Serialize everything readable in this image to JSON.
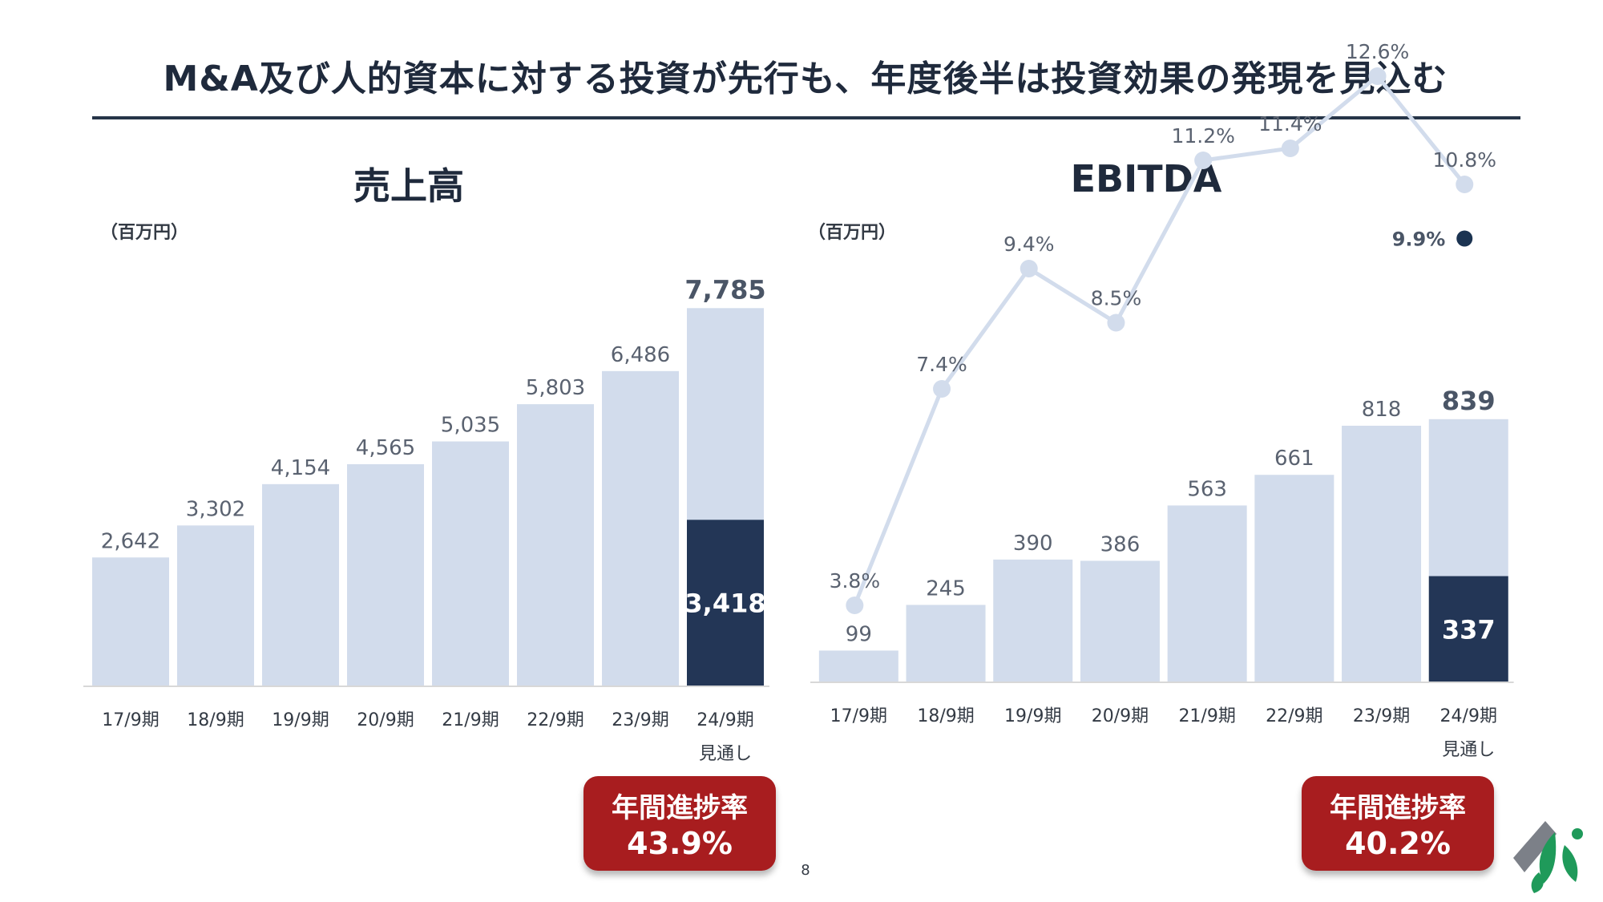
{
  "slide": {
    "title": "M&A及び人的資本に対する投資が先行も、年度後半は投資効果の発現を見込む",
    "page_number": "8"
  },
  "chart_data": [
    {
      "type": "bar",
      "title": "売上高",
      "unit": "（百万円）",
      "categories": [
        "17/9期",
        "18/9期",
        "19/9期",
        "20/9期",
        "21/9期",
        "22/9期",
        "23/9期",
        "24/9期"
      ],
      "category_sublabels": [
        "",
        "",
        "",
        "",
        "",
        "",
        "",
        "見通し"
      ],
      "series": [
        {
          "values": [
            2642,
            3302,
            4154,
            4565,
            5035,
            5803,
            6486,
            7785
          ],
          "color": "#d2dcec"
        },
        {
          "values": [
            null,
            null,
            null,
            null,
            null,
            null,
            null,
            3418
          ],
          "color": "#233656"
        }
      ],
      "value_labels": [
        "2,642",
        "3,302",
        "4,154",
        "4,565",
        "5,035",
        "5,803",
        "6,486",
        "7,785"
      ],
      "highlight_label": "3,418",
      "ylim": [
        0,
        8600
      ],
      "badge": {
        "label": "年間進捗率",
        "value": "43.9%"
      }
    },
    {
      "type": "bar",
      "title": "EBITDA",
      "unit": "（百万円）",
      "categories": [
        "17/9期",
        "18/9期",
        "19/9期",
        "20/9期",
        "21/9期",
        "22/9期",
        "23/9期",
        "24/9期"
      ],
      "category_sublabels": [
        "",
        "",
        "",
        "",
        "",
        "",
        "",
        "見通し"
      ],
      "series": [
        {
          "values": [
            99,
            245,
            390,
            386,
            563,
            661,
            818,
            839
          ],
          "color": "#d2dcec"
        },
        {
          "values": [
            null,
            null,
            null,
            null,
            null,
            null,
            null,
            337
          ],
          "color": "#233656"
        }
      ],
      "value_labels": [
        "99",
        "245",
        "390",
        "386",
        "563",
        "661",
        "818",
        "839"
      ],
      "highlight_label": "337",
      "ylim": [
        0,
        1000
      ],
      "margin_line": {
        "values": [
          3.8,
          7.4,
          9.4,
          8.5,
          11.2,
          11.4,
          12.6,
          10.8
        ],
        "labels": [
          "3.8%",
          "7.4%",
          "9.4%",
          "8.5%",
          "11.2%",
          "11.4%",
          "12.6%",
          "10.8%"
        ],
        "color": "#d2dcec",
        "ylim": [
          0,
          14
        ]
      },
      "margin_highlight": {
        "value": 9.9,
        "label": "9.9%",
        "color": "#1b3351"
      },
      "badge": {
        "label": "年間進捗率",
        "value": "40.2%"
      }
    }
  ],
  "colors": {
    "accent": "#a81d1f",
    "navy": "#233656",
    "bar": "#d2dcec",
    "text": "#333a44"
  },
  "logo": {
    "icon": "company-leaf-logo-icon"
  }
}
